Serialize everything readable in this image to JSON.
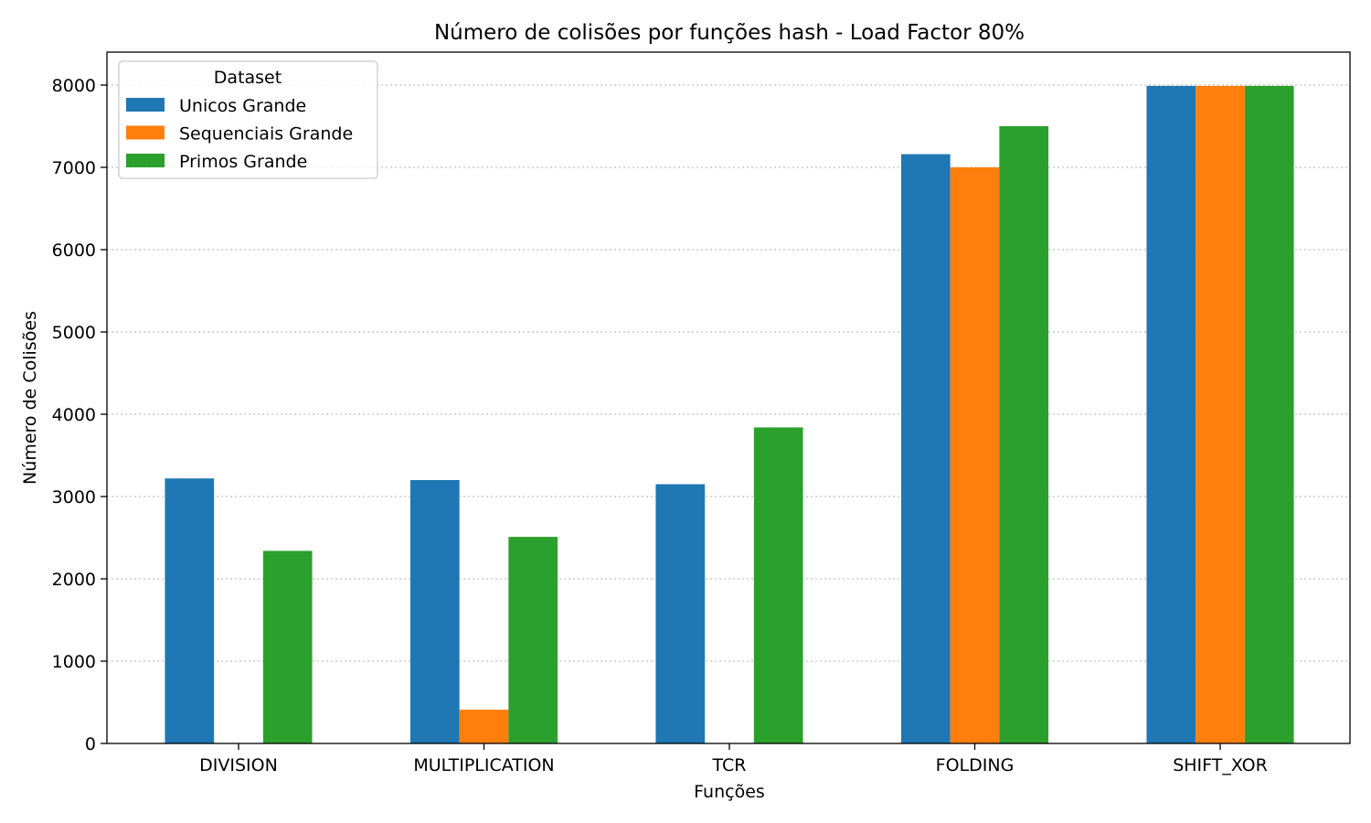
{
  "chart_data": {
    "type": "bar",
    "title": "Número de colisões por funções hash - Load Factor 80%",
    "xlabel": "Funções",
    "ylabel": "Número de Colisões",
    "categories": [
      "DIVISION",
      "MULTIPLICATION",
      "TCR",
      "FOLDING",
      "SHIFT_XOR"
    ],
    "series": [
      {
        "name": "Unicos Grande",
        "color": "#1f77b4",
        "values": [
          3220,
          3200,
          3150,
          7160,
          7990
        ]
      },
      {
        "name": "Sequenciais Grande",
        "color": "#ff7f0e",
        "values": [
          0,
          410,
          0,
          7000,
          7990
        ]
      },
      {
        "name": "Primos Grande",
        "color": "#2ca02c",
        "values": [
          2340,
          2510,
          3840,
          7500,
          7990
        ]
      }
    ],
    "ylim": [
      0,
      8400
    ],
    "yticks": [
      0,
      1000,
      2000,
      3000,
      4000,
      5000,
      6000,
      7000,
      8000
    ],
    "grid": "y dotted",
    "legend": {
      "title": "Dataset",
      "placement": "top-left"
    }
  }
}
